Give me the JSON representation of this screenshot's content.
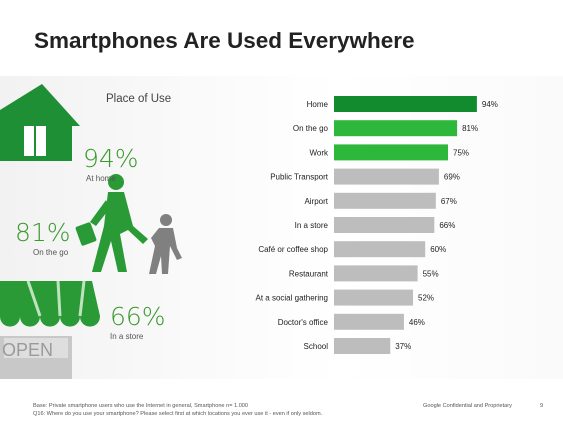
{
  "title": "Smartphones Are Used Everywhere",
  "panel_title": "Place of Use",
  "stats": [
    {
      "value": "94%",
      "label": "At home"
    },
    {
      "value": "81%",
      "label": "On the go"
    },
    {
      "value": "66%",
      "label": "In a store"
    }
  ],
  "store_sign": "OPEN",
  "footer": {
    "base": "Base:   Private smartphone users who use the Internet in general, Smartphone n= 1.000",
    "question": "Q16:   Where do you use your smartphone? Please select first at which locations you ever use it - even if only seldom.",
    "confidential": "Google Confidential and Proprietary",
    "page": "9"
  },
  "colors": {
    "green_dark": "#128a2e",
    "green_light": "#2db83c",
    "grey": "#bdbdbd",
    "icon_green": "#1e8f34",
    "stat_green": "#3a9a2d"
  },
  "chart_data": {
    "type": "bar",
    "orientation": "horizontal",
    "categories": [
      "Home",
      "On the go",
      "Work",
      "Public Transport",
      "Airport",
      "In a store",
      "Café or coffee shop",
      "Restaurant",
      "At a social gathering",
      "Doctor's office",
      "School"
    ],
    "values": [
      94,
      81,
      75,
      69,
      67,
      66,
      60,
      55,
      52,
      46,
      37
    ],
    "value_labels": [
      "94%",
      "81%",
      "75%",
      "69%",
      "67%",
      "66%",
      "60%",
      "55%",
      "52%",
      "46%",
      "37%"
    ],
    "bar_colors": [
      "#128a2e",
      "#2db83c",
      "#2db83c",
      "#bdbdbd",
      "#bdbdbd",
      "#bdbdbd",
      "#bdbdbd",
      "#bdbdbd",
      "#bdbdbd",
      "#bdbdbd",
      "#bdbdbd"
    ],
    "xlim": [
      0,
      100
    ]
  }
}
